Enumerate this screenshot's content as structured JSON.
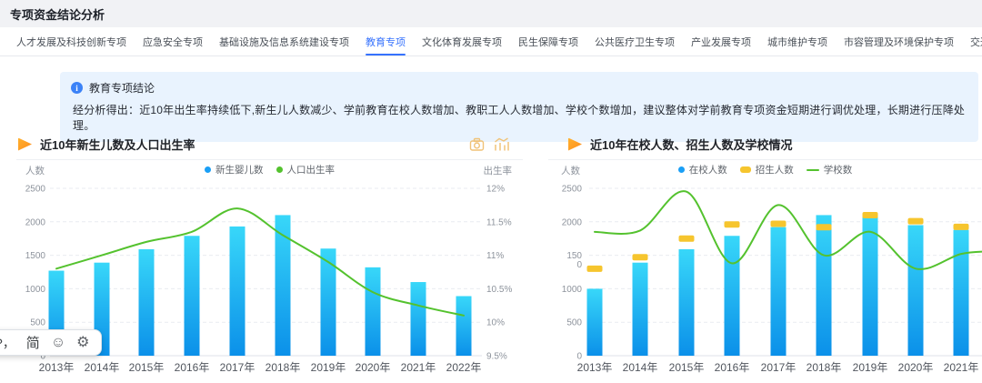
{
  "page": {
    "title": "专项资金结论分析"
  },
  "tabs": {
    "active_index": 3,
    "items": [
      "人才发展及科技创新专项",
      "应急安全专项",
      "基础设施及信息系统建设专项",
      "教育专项",
      "文化体育发展专项",
      "民生保障专项",
      "公共医疗卫生专项",
      "产业发展专项",
      "城市维护专项",
      "市容管理及环境保护专项",
      "交通专项"
    ]
  },
  "notice": {
    "title": "教育专项结论",
    "body": "经分析得出：近10年出生率持续低下,新生儿人数减少、学前教育在校人数增加、教职工人人数增加、学校个数增加，建议整体对学前教育专项资金短期进行调优处理，长期进行压降处理。"
  },
  "colors": {
    "accent_blue": "#3672fd",
    "bar_gradient_top": "#38d7f9",
    "bar_gradient_bottom": "#0b90e9",
    "series_blue": "#1a9ff6",
    "series_green": "#54c22e",
    "series_yellow": "#f6c52e",
    "title_arrow_orange": "#ff8d1d",
    "toolbox_orange": "#f0c277",
    "notice_bg": "#e9f3fe"
  },
  "toolbox": {
    "icons": [
      "save-as-image-camera",
      "switch-chart-type"
    ]
  },
  "chart_data": [
    {
      "type": "bar+line",
      "title": "近10年新生儿数及人口出生率",
      "categories": [
        "2013年",
        "2014年",
        "2015年",
        "2016年",
        "2017年",
        "2018年",
        "2019年",
        "2020年",
        "2021年",
        "2022年"
      ],
      "left_axis": {
        "name": "人数",
        "min": 0,
        "max": 2500,
        "ticks": [
          "2500",
          "2000",
          "1500",
          "1000",
          "500",
          "0"
        ]
      },
      "right_axis": {
        "name": "出生率",
        "min": 9.5,
        "max": 12,
        "ticks": [
          "12%",
          "11.5%",
          "11%",
          "10.5%",
          "10%",
          "9.5%"
        ]
      },
      "grid": "dashed-horizontal",
      "legend_position": "top-center",
      "series": [
        {
          "name": "新生婴儿数",
          "type": "bar",
          "axis": "left",
          "marker": "circle",
          "color": "#1a9ff6",
          "values": [
            1270,
            1390,
            1590,
            1790,
            1930,
            2100,
            1600,
            1320,
            1100,
            890
          ]
        },
        {
          "name": "人口出生率",
          "type": "line",
          "axis": "right",
          "marker": "circle",
          "color": "#54c22e",
          "values": [
            10.8,
            11.0,
            11.2,
            11.35,
            11.7,
            11.3,
            10.9,
            10.45,
            10.25,
            10.1
          ]
        }
      ]
    },
    {
      "type": "bar+line",
      "title": "近10年在校人数、招生人数及学校情况",
      "categories": [
        "2013年",
        "2014年",
        "2015年",
        "2016年",
        "2017年",
        "2018年",
        "2019年",
        "2020年",
        "2021年"
      ],
      "clipped_note": "chart continues past right edge of screen",
      "left_axis": {
        "name": "人数",
        "min": 0,
        "max": 2500,
        "ticks": [
          "2500",
          "2000",
          "150\n0",
          "1000",
          "500",
          "0"
        ]
      },
      "grid": "dashed-horizontal",
      "legend_position": "top-center",
      "series": [
        {
          "name": "在校人数",
          "type": "bar",
          "axis": "left",
          "marker": "circle",
          "color": "#1a9ff6",
          "values": [
            1000,
            1390,
            1590,
            1790,
            1920,
            2100,
            2080,
            1950,
            1880
          ]
        },
        {
          "name": "招生人数",
          "type": "dash",
          "axis": "left",
          "marker": "bar",
          "color": "#f6c52e",
          "values": [
            1300,
            1470,
            1750,
            1960,
            1970,
            1920,
            2100,
            2010,
            1925
          ]
        },
        {
          "name": "学校数",
          "type": "line",
          "axis": "left",
          "marker": "line",
          "color": "#54c22e",
          "values": [
            1850,
            1870,
            2450,
            1380,
            2250,
            1500,
            1850,
            1300,
            1520
          ],
          "offscreen_next_value": 1560
        }
      ]
    }
  ],
  "ime_bar": {
    "fragment": "?，",
    "lang": "简",
    "emoji": "☺",
    "gear": "⚙"
  }
}
